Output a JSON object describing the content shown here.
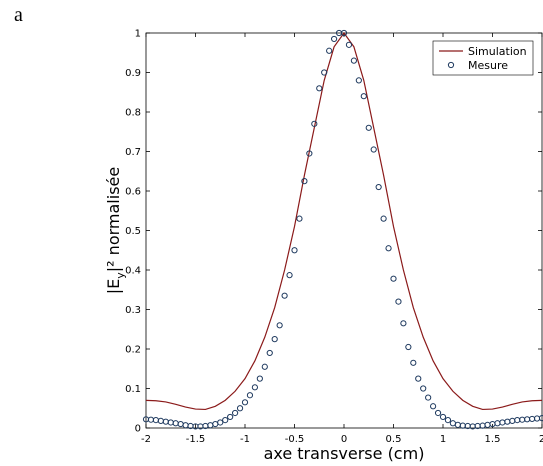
{
  "panel_label": "a",
  "chart_data": {
    "type": "line",
    "xlabel": "axe transverse (cm)",
    "ylabel_parts": {
      "pre": "|E",
      "sub": "y",
      "post": "|² normalisée"
    },
    "xlim": [
      -2,
      2
    ],
    "ylim": [
      0,
      1
    ],
    "xticks": [
      -2,
      -1.5,
      -1,
      -0.5,
      0,
      0.5,
      1,
      1.5,
      2
    ],
    "xtick_labels": [
      "-2",
      "-1.5",
      "-1",
      "-0.5",
      "0",
      "0.5",
      "1",
      "1.5",
      "2"
    ],
    "yticks": [
      0,
      0.1,
      0.2,
      0.3,
      0.4,
      0.5,
      0.6,
      0.7,
      0.8,
      0.9,
      1
    ],
    "ytick_labels": [
      "0",
      "0.1",
      "0.2",
      "0.3",
      "0.4",
      "0.5",
      "0.6",
      "0.7",
      "0.8",
      "0.9",
      "1"
    ],
    "grid": false,
    "legend_position": "top-right",
    "series": [
      {
        "name": "Simulation",
        "style": "line",
        "color": "#8b1a1a",
        "x": [
          -2.0,
          -1.9,
          -1.8,
          -1.7,
          -1.6,
          -1.5,
          -1.4,
          -1.3,
          -1.2,
          -1.1,
          -1.0,
          -0.9,
          -0.8,
          -0.7,
          -0.6,
          -0.5,
          -0.4,
          -0.3,
          -0.2,
          -0.1,
          0.0,
          0.1,
          0.2,
          0.3,
          0.4,
          0.5,
          0.6,
          0.7,
          0.8,
          0.9,
          1.0,
          1.1,
          1.2,
          1.3,
          1.4,
          1.5,
          1.6,
          1.7,
          1.8,
          1.9,
          2.0
        ],
        "y": [
          0.07,
          0.069,
          0.066,
          0.06,
          0.053,
          0.048,
          0.047,
          0.055,
          0.07,
          0.093,
          0.125,
          0.17,
          0.23,
          0.305,
          0.4,
          0.51,
          0.64,
          0.76,
          0.88,
          0.965,
          1.0,
          0.965,
          0.88,
          0.76,
          0.64,
          0.51,
          0.4,
          0.305,
          0.23,
          0.17,
          0.125,
          0.093,
          0.07,
          0.055,
          0.047,
          0.048,
          0.053,
          0.06,
          0.066,
          0.069,
          0.07
        ]
      },
      {
        "name": "Mesure",
        "style": "markers",
        "color": "#1f3a5f",
        "x": [
          -2.0,
          -1.95,
          -1.9,
          -1.85,
          -1.8,
          -1.75,
          -1.7,
          -1.65,
          -1.6,
          -1.55,
          -1.5,
          -1.45,
          -1.4,
          -1.35,
          -1.3,
          -1.25,
          -1.2,
          -1.15,
          -1.1,
          -1.05,
          -1.0,
          -0.95,
          -0.9,
          -0.85,
          -0.8,
          -0.75,
          -0.7,
          -0.65,
          -0.6,
          -0.55,
          -0.5,
          -0.45,
          -0.4,
          -0.35,
          -0.3,
          -0.25,
          -0.2,
          -0.15,
          -0.1,
          -0.05,
          0.0,
          0.05,
          0.1,
          0.15,
          0.2,
          0.25,
          0.3,
          0.35,
          0.4,
          0.45,
          0.5,
          0.55,
          0.6,
          0.65,
          0.7,
          0.75,
          0.8,
          0.85,
          0.9,
          0.95,
          1.0,
          1.05,
          1.1,
          1.15,
          1.2,
          1.25,
          1.3,
          1.35,
          1.4,
          1.45,
          1.5,
          1.55,
          1.6,
          1.65,
          1.7,
          1.75,
          1.8,
          1.85,
          1.9,
          1.95,
          2.0
        ],
        "y": [
          0.022,
          0.021,
          0.02,
          0.018,
          0.016,
          0.014,
          0.012,
          0.01,
          0.007,
          0.005,
          0.004,
          0.004,
          0.005,
          0.007,
          0.01,
          0.014,
          0.02,
          0.028,
          0.038,
          0.05,
          0.065,
          0.083,
          0.103,
          0.125,
          0.155,
          0.19,
          0.225,
          0.26,
          0.335,
          0.387,
          0.45,
          0.53,
          0.625,
          0.695,
          0.77,
          0.86,
          0.9,
          0.955,
          0.985,
          1.0,
          1.0,
          0.97,
          0.93,
          0.88,
          0.84,
          0.76,
          0.705,
          0.61,
          0.53,
          0.455,
          0.378,
          0.32,
          0.265,
          0.205,
          0.165,
          0.125,
          0.1,
          0.077,
          0.055,
          0.038,
          0.028,
          0.02,
          0.012,
          0.008,
          0.006,
          0.005,
          0.004,
          0.005,
          0.006,
          0.008,
          0.01,
          0.012,
          0.014,
          0.016,
          0.018,
          0.02,
          0.021,
          0.022,
          0.023,
          0.024,
          0.025
        ]
      }
    ]
  }
}
